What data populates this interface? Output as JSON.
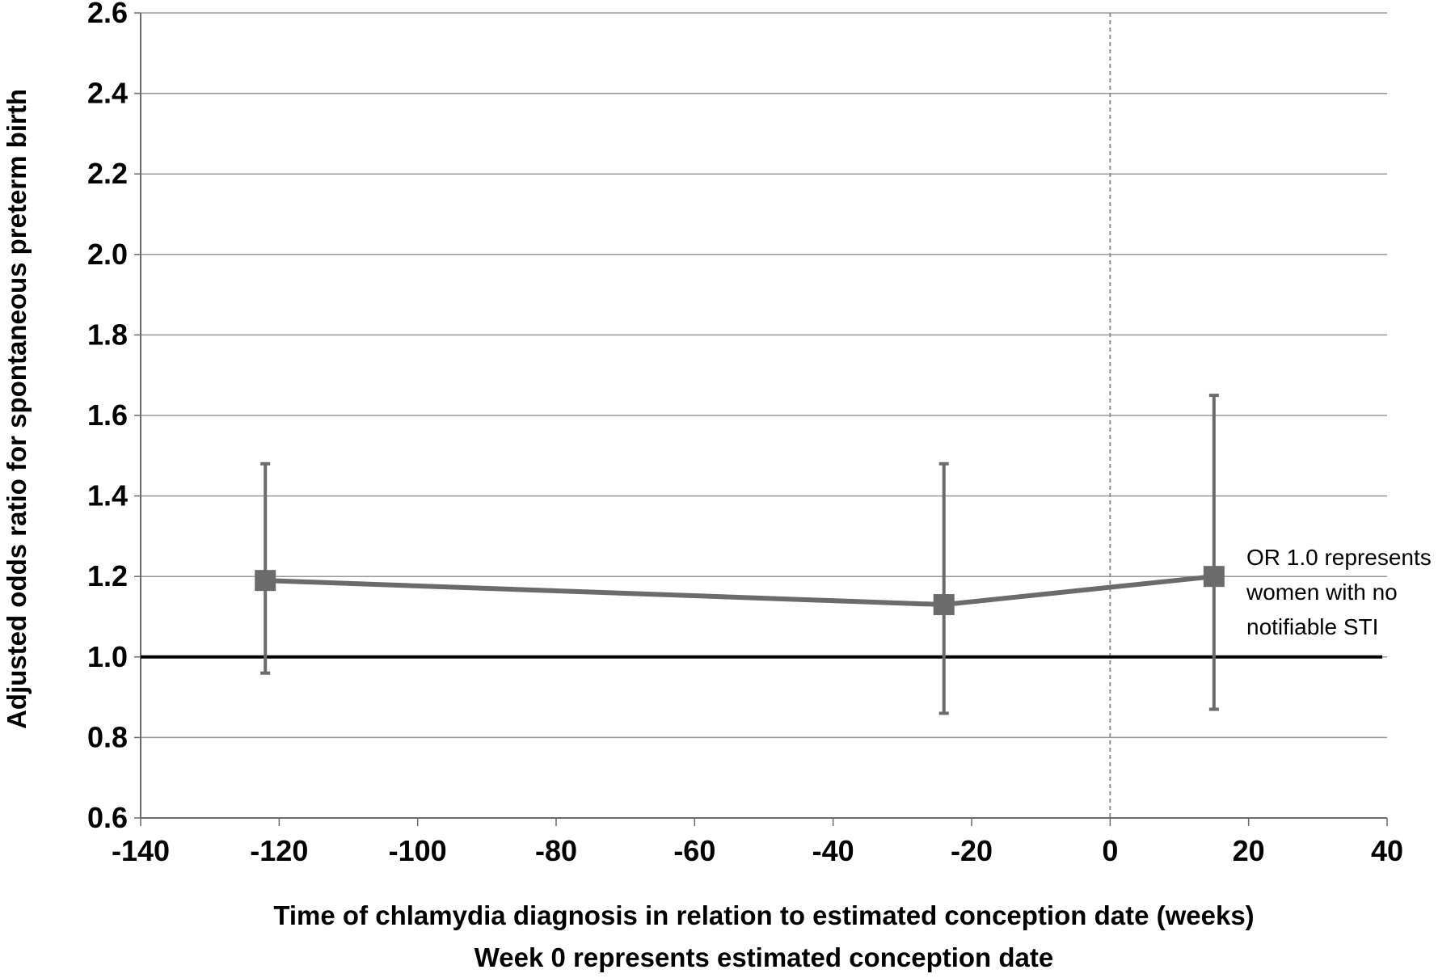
{
  "chart_data": {
    "type": "line",
    "title": "",
    "xlabel": "Time of chlamydia diagnosis in relation to estimated conception date (weeks)",
    "xlabel_line2": "Week 0 represents estimated conception date",
    "ylabel": "Adjusted odds ratio for spontaneous preterm birth",
    "xlim": [
      -140,
      40
    ],
    "ylim": [
      0.6,
      2.6
    ],
    "x_ticks": [
      -140,
      -120,
      -100,
      -80,
      -60,
      -40,
      -20,
      0,
      20,
      40
    ],
    "x_tick_labels": [
      "-140",
      "-120",
      "-100",
      "-80",
      "-60",
      "-40",
      "-20",
      "0",
      "20",
      "40"
    ],
    "y_ticks": [
      0.6,
      0.8,
      1.0,
      1.2,
      1.4,
      1.6,
      1.8,
      2.0,
      2.2,
      2.4,
      2.6
    ],
    "y_tick_labels": [
      "0.6",
      "0.8",
      "1.0",
      "1.2",
      "1.4",
      "1.6",
      "1.8",
      "2.0",
      "2.2",
      "2.4",
      "2.6"
    ],
    "grid": true,
    "series": [
      {
        "points": [
          {
            "x": -122,
            "y": 1.19,
            "lower": 0.96,
            "upper": 1.48
          },
          {
            "x": -24,
            "y": 1.13,
            "lower": 0.86,
            "upper": 1.48
          },
          {
            "x": 15,
            "y": 1.2,
            "lower": 0.87,
            "upper": 1.65
          }
        ]
      }
    ],
    "reference_line": {
      "y": 1.0
    },
    "vertical_reference": {
      "x": 0
    },
    "annotation": {
      "lines": [
        "OR 1.0 represents",
        "women with no",
        "notifiable STI"
      ]
    },
    "colors": {
      "series": "#6b6b6b",
      "reference": "#000000",
      "grid": "#9a9a9a",
      "vertical": "#888888"
    }
  }
}
